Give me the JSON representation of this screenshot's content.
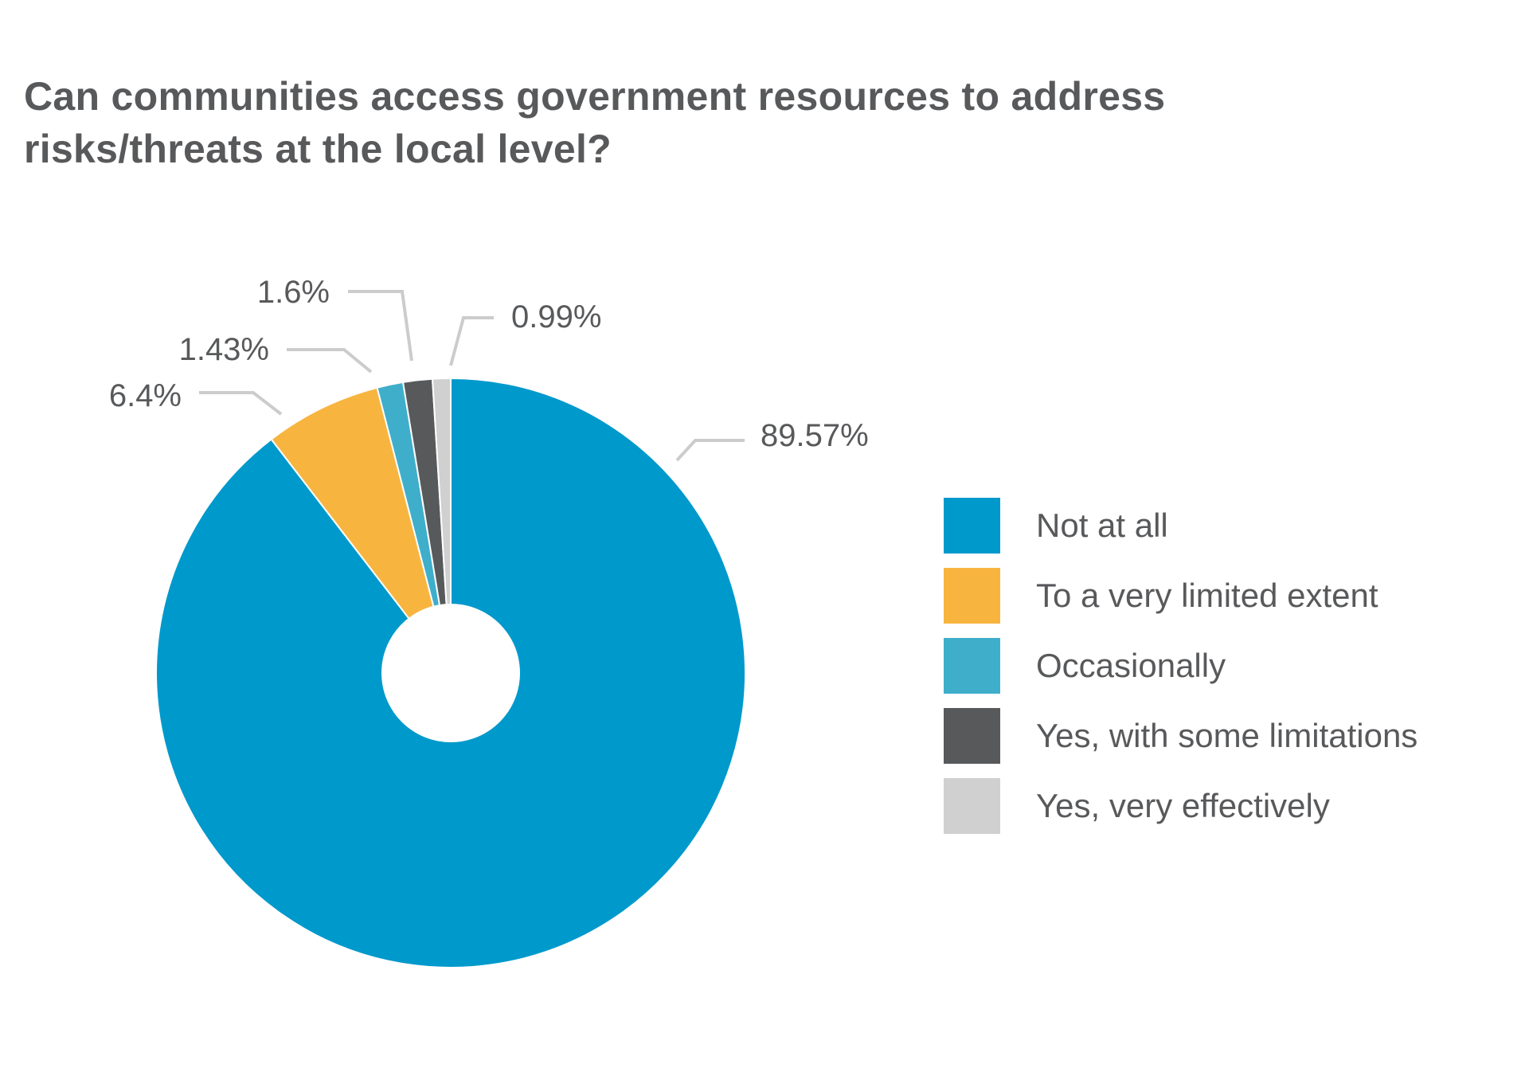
{
  "chart_data": {
    "type": "pie",
    "title": "Can communities access government resources to address risks/threats at the local level?",
    "series": [
      {
        "name": "Not at all",
        "value": 89.57,
        "label": "89.57%",
        "color": "#0099cc"
      },
      {
        "name": "To a very limited extent",
        "value": 6.4,
        "label": "6.4%",
        "color": "#f7b540"
      },
      {
        "name": "Occasionally",
        "value": 1.43,
        "label": "1.43%",
        "color": "#3faecb"
      },
      {
        "name": "Yes, with some limitations",
        "value": 1.6,
        "label": "1.6%",
        "color": "#58595b"
      },
      {
        "name": "Yes, very effectively",
        "value": 0.99,
        "label": "0.99%",
        "color": "#d0d0d0"
      }
    ],
    "donut_hole": true,
    "legend_position": "right"
  }
}
